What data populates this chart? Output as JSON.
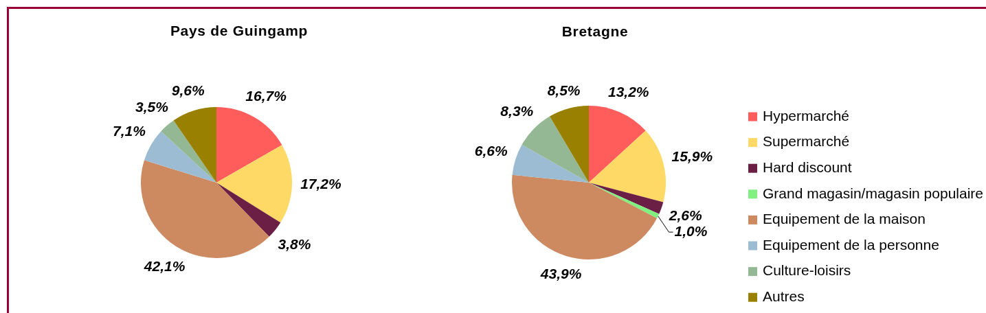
{
  "chart_data": [
    {
      "type": "pie",
      "title": "Pays de Guingamp",
      "categories": [
        null,
        null,
        null,
        null,
        null,
        null,
        null,
        null
      ],
      "values": [
        16.7,
        17.2,
        3.8,
        0,
        42.1,
        7.1,
        3.5,
        9.6
      ],
      "colors": [
        "#ff5c5c",
        "#fed966",
        "#6b1f45",
        "#80f080",
        "#cd8a60",
        "#9bbcd2",
        "#93b893",
        "#9a8000"
      ],
      "value_labels": [
        "16,7%",
        "17,2%",
        "3,8%",
        null,
        "42,1%",
        "7,1%",
        "3,5%",
        "9,6%"
      ]
    },
    {
      "type": "pie",
      "title": "Bretagne",
      "categories": [
        "Hypermarché",
        "Supermarché",
        "Hard discount",
        "Grand magasin/magasin populaire",
        "Equipement de la maison",
        "Equipement de la personne",
        "Culture-loisirs",
        "Autres"
      ],
      "values": [
        13.2,
        15.9,
        2.6,
        1.0,
        43.9,
        6.6,
        8.3,
        8.5
      ],
      "colors": [
        "#ff5c5c",
        "#fed966",
        "#6b1f45",
        "#80f080",
        "#cd8a60",
        "#9bbcd2",
        "#93b893",
        "#9a8000"
      ],
      "value_labels": [
        "13,2%",
        "15,9%",
        "2,6%",
        "1,0%",
        "43,9%",
        "6,6%",
        "8,3%",
        "8,5%"
      ],
      "legend": "right"
    }
  ]
}
